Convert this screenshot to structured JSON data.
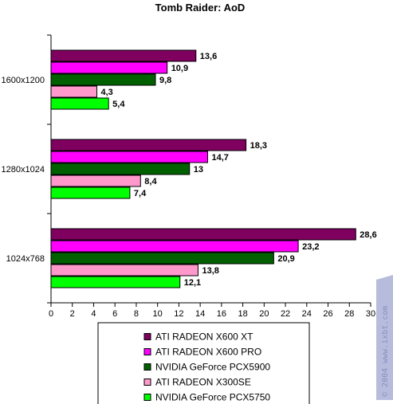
{
  "chart_data": {
    "type": "bar",
    "orientation": "horizontal",
    "title": "Tomb Raider: AoD",
    "xlabel": "",
    "ylabel": "",
    "categories": [
      "1600x1200",
      "1280x1024",
      "1024x768"
    ],
    "xlim": [
      0,
      30
    ],
    "x_ticks": [
      0,
      2,
      4,
      6,
      8,
      10,
      12,
      14,
      16,
      18,
      20,
      22,
      24,
      26,
      28,
      30
    ],
    "grid": false,
    "legend_position": "bottom",
    "series": [
      {
        "name": "ATI  RADEON X600 XT",
        "color": "#800060",
        "values": [
          13.6,
          18.3,
          28.6
        ],
        "labels": [
          "13,6",
          "18,3",
          "28,6"
        ]
      },
      {
        "name": "ATI RADEON X600 PRO",
        "color": "#ff00ff",
        "values": [
          10.9,
          14.7,
          23.2
        ],
        "labels": [
          "10,9",
          "14,7",
          "23,2"
        ]
      },
      {
        "name": "NVIDIA GeForce PCX5900",
        "color": "#006000",
        "values": [
          9.8,
          13,
          20.9
        ],
        "labels": [
          "9,8",
          "13",
          "20,9"
        ]
      },
      {
        "name": "ATI RADEON X300SE",
        "color": "#ff99cc",
        "values": [
          4.3,
          8.4,
          13.8
        ],
        "labels": [
          "4,3",
          "8,4",
          "13,8"
        ]
      },
      {
        "name": "NVIDIA GeForce PCX5750",
        "color": "#00ff00",
        "values": [
          5.4,
          7.4,
          12.1
        ],
        "labels": [
          "5,4",
          "7,4",
          "12,1"
        ]
      }
    ]
  },
  "watermark": {
    "text": "© 2004 www.ixbt.com",
    "color": "#9aa0cc"
  }
}
